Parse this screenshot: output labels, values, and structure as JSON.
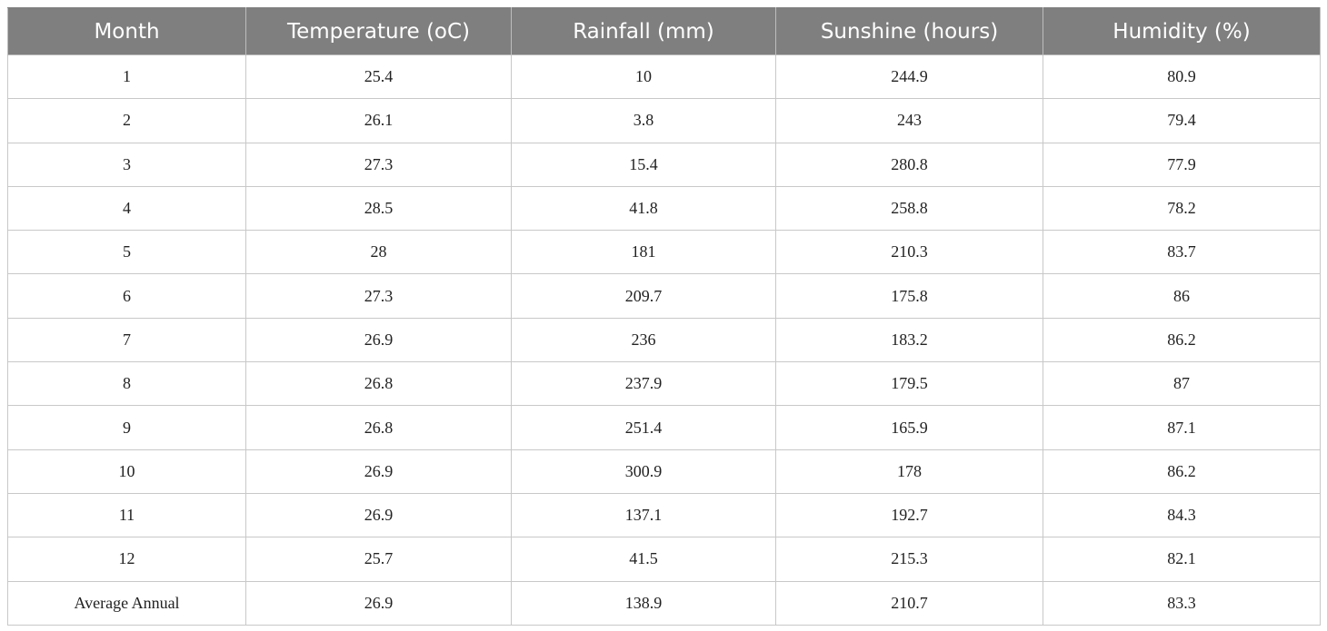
{
  "table": {
    "header": [
      "Month",
      "Temperature (oC)",
      "Rainfall (mm)",
      "Sunshine (hours)",
      "Humidity (%)"
    ],
    "rows": [
      [
        "1",
        "25.4",
        "10",
        "244.9",
        "80.9"
      ],
      [
        "2",
        "26.1",
        "3.8",
        "243",
        "79.4"
      ],
      [
        "3",
        "27.3",
        "15.4",
        "280.8",
        "77.9"
      ],
      [
        "4",
        "28.5",
        "41.8",
        "258.8",
        "78.2"
      ],
      [
        "5",
        "28",
        "181",
        "210.3",
        "83.7"
      ],
      [
        "6",
        "27.3",
        "209.7",
        "175.8",
        "86"
      ],
      [
        "7",
        "26.9",
        "236",
        "183.2",
        "86.2"
      ],
      [
        "8",
        "26.8",
        "237.9",
        "179.5",
        "87"
      ],
      [
        "9",
        "26.8",
        "251.4",
        "165.9",
        "87.1"
      ],
      [
        "10",
        "26.9",
        "300.9",
        "178",
        "86.2"
      ],
      [
        "11",
        "26.9",
        "137.1",
        "192.7",
        "84.3"
      ],
      [
        "12",
        "25.7",
        "41.5",
        "215.3",
        "82.1"
      ],
      [
        "Average Annual",
        "26.9",
        "138.9",
        "210.7",
        "83.3"
      ]
    ]
  }
}
